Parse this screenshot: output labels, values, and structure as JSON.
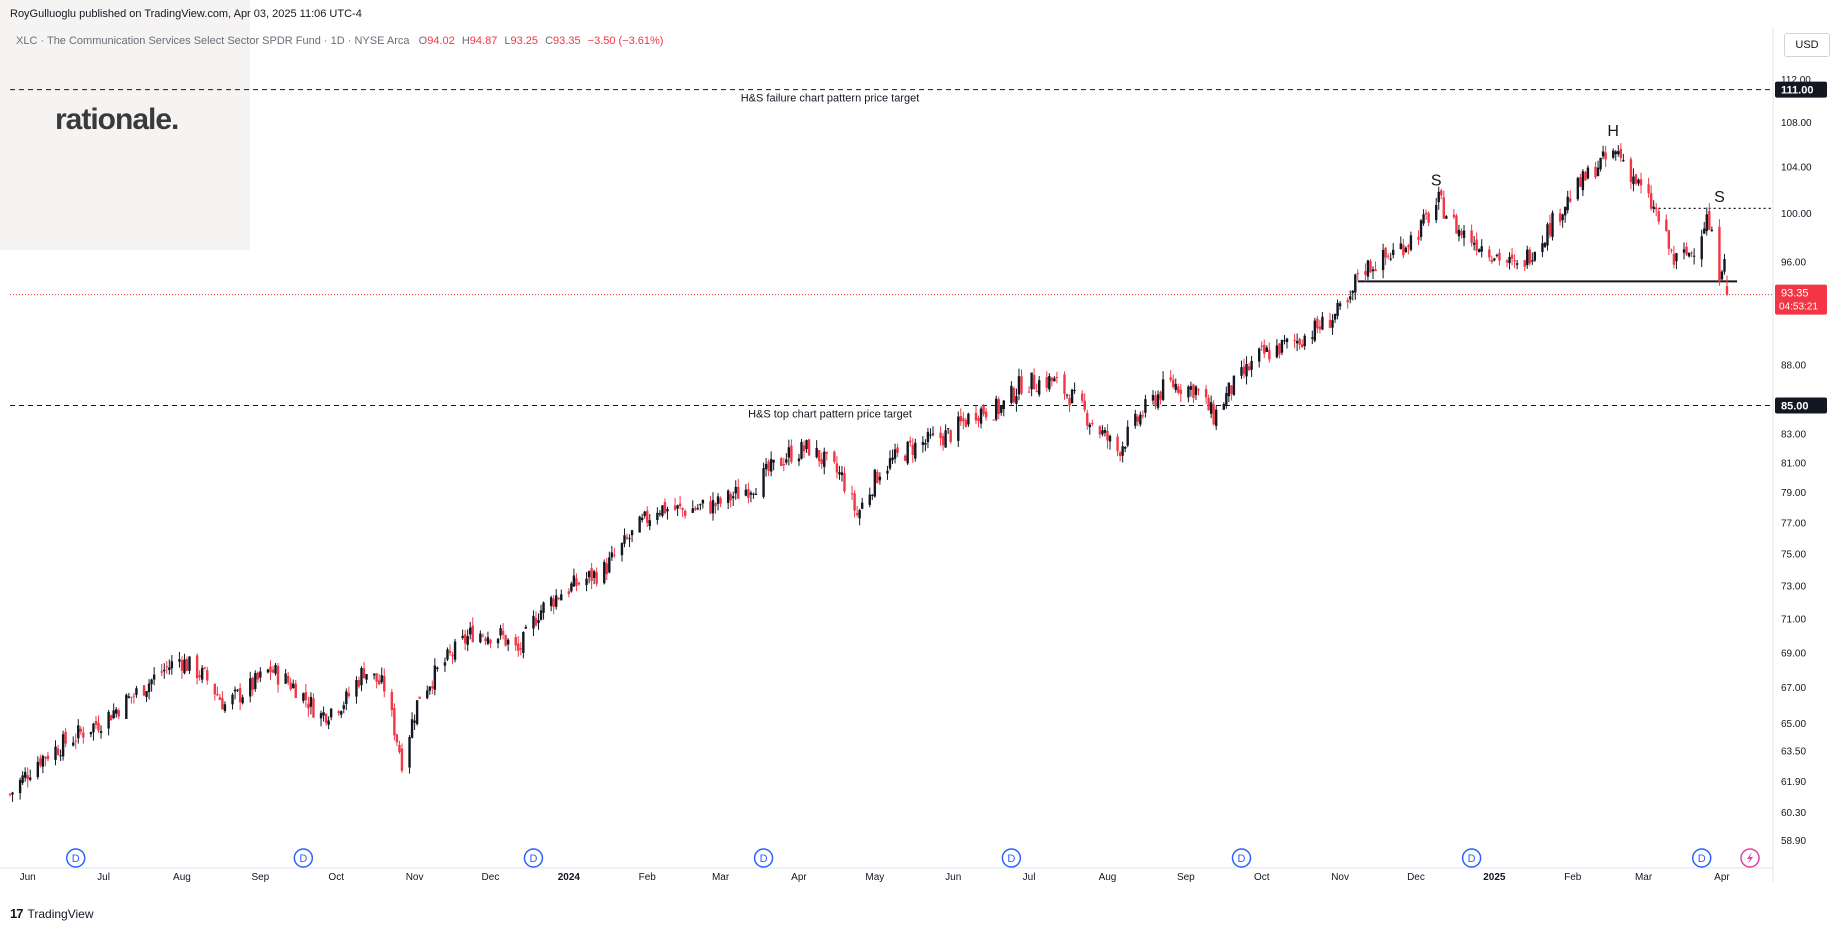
{
  "header": {
    "published": "RoyGulluoglu published on TradingView.com, Apr 03, 2025 11:06 UTC-4",
    "symbol": "XLC · The Communication Services Select Sector SPDR Fund · 1D · NYSE Arca",
    "o_label": "O",
    "o_value": "94.02",
    "h_label": "H",
    "h_value": "94.87",
    "l_label": "L",
    "l_value": "93.25",
    "c_label": "C",
    "c_value": "93.35",
    "change": "−3.50 (−3.61%)"
  },
  "watermark": "rationale.",
  "currency": "USD",
  "brand": "TradingView",
  "colors": {
    "up": "#131722",
    "down": "#f23645",
    "accent": "#2962ff",
    "dividend": "#2962ff"
  },
  "chart_data": {
    "type": "candlestick",
    "title": "",
    "xlabel": "",
    "ylabel": "",
    "price_scale": "log",
    "ylim": [
      58.0,
      114.0
    ],
    "y_ticks": [
      "112.00",
      "108.00",
      "104.00",
      "100.00",
      "96.00",
      "88.00",
      "83.00",
      "81.00",
      "79.00",
      "77.00",
      "75.00",
      "73.00",
      "71.00",
      "69.00",
      "67.00",
      "65.00",
      "63.50",
      "61.90",
      "60.30",
      "58.90"
    ],
    "x_ticks": [
      "Jun",
      "Jul",
      "Aug",
      "Sep",
      "Oct",
      "Nov",
      "Dec",
      "2024",
      "Feb",
      "Mar",
      "Apr",
      "May",
      "Jun",
      "Jul",
      "Aug",
      "Sep",
      "Oct",
      "Nov",
      "Dec",
      "2025",
      "Feb",
      "Mar",
      "Apr"
    ],
    "x_range": [
      "2023-05-25",
      "2025-04-20"
    ],
    "grid": false,
    "path_points": [
      [
        "2023-05-25",
        61.2
      ],
      [
        "2023-06-05",
        63.0
      ],
      [
        "2023-06-20",
        64.3
      ],
      [
        "2023-07-01",
        65.2
      ],
      [
        "2023-07-15",
        66.8
      ],
      [
        "2023-07-25",
        68.0
      ],
      [
        "2023-07-31",
        68.6
      ],
      [
        "2023-08-10",
        67.6
      ],
      [
        "2023-08-18",
        66.0
      ],
      [
        "2023-08-28",
        67.0
      ],
      [
        "2023-09-05",
        68.0
      ],
      [
        "2023-09-15",
        67.0
      ],
      [
        "2023-09-25",
        65.4
      ],
      [
        "2023-10-05",
        66.3
      ],
      [
        "2023-10-12",
        68.0
      ],
      [
        "2023-10-20",
        67.0
      ],
      [
        "2023-10-27",
        63.0
      ],
      [
        "2023-11-03",
        66.6
      ],
      [
        "2023-11-14",
        68.6
      ],
      [
        "2023-11-24",
        70.2
      ],
      [
        "2023-12-05",
        70.0
      ],
      [
        "2023-12-12",
        69.0
      ],
      [
        "2023-12-20",
        71.4
      ],
      [
        "2023-12-29",
        72.6
      ],
      [
        "2024-01-15",
        74.0
      ],
      [
        "2024-01-25",
        76.0
      ],
      [
        "2024-02-05",
        78.0
      ],
      [
        "2024-02-15",
        77.8
      ],
      [
        "2024-02-29",
        78.2
      ],
      [
        "2024-03-15",
        79.6
      ],
      [
        "2024-03-28",
        81.6
      ],
      [
        "2024-04-05",
        82.0
      ],
      [
        "2024-04-18",
        80.0
      ],
      [
        "2024-04-24",
        77.5
      ],
      [
        "2024-05-03",
        80.5
      ],
      [
        "2024-05-15",
        82.0
      ],
      [
        "2024-05-31",
        83.0
      ],
      [
        "2024-06-10",
        84.6
      ],
      [
        "2024-06-20",
        84.8
      ],
      [
        "2024-06-28",
        86.6
      ],
      [
        "2024-07-10",
        86.8
      ],
      [
        "2024-07-18",
        85.6
      ],
      [
        "2024-07-25",
        84.0
      ],
      [
        "2024-08-05",
        81.8
      ],
      [
        "2024-08-15",
        84.5
      ],
      [
        "2024-08-25",
        86.6
      ],
      [
        "2024-09-05",
        86.2
      ],
      [
        "2024-09-12",
        84.2
      ],
      [
        "2024-09-18",
        86.0
      ],
      [
        "2024-09-30",
        88.6
      ],
      [
        "2024-10-15",
        89.8
      ],
      [
        "2024-10-25",
        91.0
      ],
      [
        "2024-11-05",
        92.6
      ],
      [
        "2024-11-08",
        95.2
      ],
      [
        "2024-11-20",
        96.4
      ],
      [
        "2024-12-01",
        98.2
      ],
      [
        "2024-12-10",
        101.0
      ],
      [
        "2024-12-18",
        98.5
      ],
      [
        "2024-12-31",
        96.8
      ],
      [
        "2025-01-10",
        95.4
      ],
      [
        "2025-01-20",
        98.0
      ],
      [
        "2025-01-31",
        101.4
      ],
      [
        "2025-02-10",
        104.0
      ],
      [
        "2025-02-19",
        105.3
      ],
      [
        "2025-02-28",
        102.0
      ],
      [
        "2025-03-06",
        100.0
      ],
      [
        "2025-03-13",
        96.0
      ],
      [
        "2025-03-20",
        96.8
      ],
      [
        "2025-03-26",
        99.6
      ],
      [
        "2025-03-31",
        95.2
      ],
      [
        "2025-04-02",
        96.85
      ],
      [
        "2025-04-03",
        93.35
      ]
    ],
    "last": {
      "open": 94.02,
      "high": 94.87,
      "low": 93.25,
      "close": 93.35
    },
    "annotations": [
      {
        "text": "H&S failure chart pattern price target",
        "price": 111.0
      },
      {
        "text": "H&S top chart pattern price target",
        "price": 85.0
      }
    ],
    "pattern_labels": [
      {
        "text": "S",
        "date": "2024-12-09"
      },
      {
        "text": "H",
        "date": "2025-02-17"
      },
      {
        "text": "S",
        "date": "2025-03-31"
      }
    ],
    "neckline": {
      "price": 94.4,
      "from": "2024-11-08",
      "to": "2025-04-07"
    },
    "resistance": {
      "price": 100.4,
      "from": "2025-03-05",
      "to": "2025-04-20"
    },
    "price_labels": {
      "target_high": "111.00",
      "target_low": "85.00",
      "last_price": "93.35",
      "countdown": "04:53:21"
    },
    "dividends": [
      {
        "date": "2023-06-20",
        "label": "D"
      },
      {
        "date": "2023-09-18",
        "label": "D"
      },
      {
        "date": "2023-12-18",
        "label": "D"
      },
      {
        "date": "2024-03-18",
        "label": "D"
      },
      {
        "date": "2024-06-24",
        "label": "D"
      },
      {
        "date": "2024-09-23",
        "label": "D"
      },
      {
        "date": "2024-12-23",
        "label": "D"
      },
      {
        "date": "2025-03-24",
        "label": "D"
      }
    ]
  }
}
